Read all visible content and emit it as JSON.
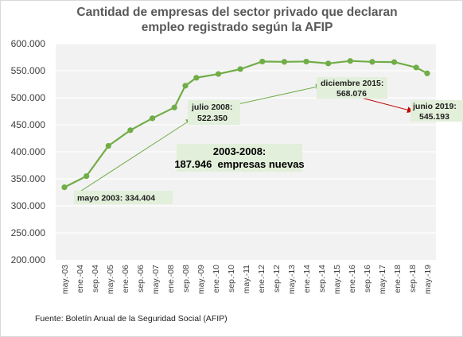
{
  "chart_data": {
    "type": "line",
    "title": [
      "Cantidad de empresas del sector privado que declaran",
      "empleo registrado según la AFIP"
    ],
    "xlabel": "",
    "ylabel": "",
    "categories": [
      "may.-03",
      "ene.-04",
      "sep.-04",
      "may.-05",
      "ene.-06",
      "sep.-06",
      "may.-07",
      "ene.-08",
      "sep.-08",
      "may.-09",
      "ene.-10",
      "sep.-10",
      "may.-11",
      "ene.-12",
      "sep.-12",
      "may.-13",
      "ene.-14",
      "sep.-14",
      "may.-15",
      "ene.-16",
      "sep.-16",
      "may.-17",
      "ene.-18",
      "sep.-18",
      "may.-19"
    ],
    "points": [
      {
        "x": 0,
        "y": 334404
      },
      {
        "x": 1,
        "y": 355000
      },
      {
        "x": 2,
        "y": 411000
      },
      {
        "x": 3,
        "y": 440000
      },
      {
        "x": 4,
        "y": 462000
      },
      {
        "x": 5,
        "y": 482000
      },
      {
        "x": 5.5,
        "y": 522350
      },
      {
        "x": 6,
        "y": 537000
      },
      {
        "x": 7,
        "y": 544000
      },
      {
        "x": 8,
        "y": 553000
      },
      {
        "x": 9,
        "y": 567000
      },
      {
        "x": 10,
        "y": 566500
      },
      {
        "x": 11,
        "y": 567000
      },
      {
        "x": 12,
        "y": 563500
      },
      {
        "x": 13,
        "y": 568076
      },
      {
        "x": 14,
        "y": 566500
      },
      {
        "x": 15,
        "y": 566000
      },
      {
        "x": 16,
        "y": 556000
      },
      {
        "x": 16.5,
        "y": 545193
      }
    ],
    "ylim": [
      200000,
      600000
    ],
    "yticks": [
      200000,
      250000,
      300000,
      350000,
      400000,
      450000,
      500000,
      550000,
      600000
    ],
    "ytick_labels": [
      "200.000",
      "250.000",
      "300.000",
      "350.000",
      "400.000",
      "450.000",
      "500.000",
      "550.000",
      "600.000"
    ],
    "grid": true,
    "colors": {
      "line": "#70ad47",
      "marker": "#70ad47",
      "plot_bg": "#f2f2f2",
      "gridline": "#ffffff",
      "annotation_bg": "#e2efda",
      "arrow_green": "#70ad47",
      "arrow_red": "#c00000"
    },
    "annotations": [
      {
        "id": "may2003",
        "text": "mayo 2003: 334.404",
        "style": "small"
      },
      {
        "id": "jul2008",
        "lines": [
          "julio 2008:",
          "522.350"
        ],
        "style": "small"
      },
      {
        "id": "dic2015",
        "lines": [
          "diciembre 2015:",
          "568.076"
        ],
        "style": "small"
      },
      {
        "id": "jun2019",
        "lines": [
          "junio 2019:",
          "545.193"
        ],
        "style": "small"
      },
      {
        "id": "summary",
        "lines": [
          "2003-2008:",
          "187.946  empresas nuevas"
        ],
        "style": "big"
      }
    ],
    "source": "Fuente: Boletín Anual de la Seguridad Social (AFIP)"
  }
}
